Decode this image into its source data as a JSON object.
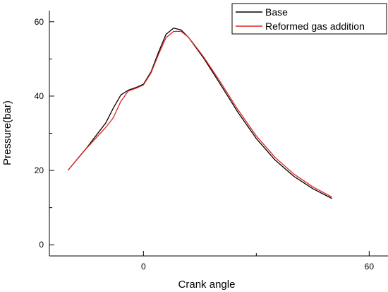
{
  "chart_data": {
    "type": "line",
    "title": "",
    "xlabel": "Crank angle",
    "ylabel": "Pressure(bar)",
    "xlim": [
      -25,
      65
    ],
    "ylim": [
      -3,
      63
    ],
    "x_ticks": [
      0,
      60
    ],
    "x_minor_ticks": [
      30
    ],
    "y_ticks": [
      0,
      20,
      40,
      60
    ],
    "y_minor_ticks": [
      10,
      30,
      50
    ],
    "grid": false,
    "legend_position": "top-right",
    "series": [
      {
        "name": "Base",
        "color": "#000000",
        "x": [
          -20,
          -15,
          -10,
          -8,
          -6,
          -4,
          -2,
          0,
          2,
          4,
          6,
          8,
          10,
          12,
          14,
          16,
          20,
          25,
          30,
          35,
          40,
          45,
          50
        ],
        "y": [
          20.1,
          26.2,
          32.8,
          36.8,
          40.3,
          41.6,
          42.3,
          43.2,
          46.5,
          51.8,
          56.6,
          58.3,
          57.8,
          55.8,
          53.0,
          50.2,
          43.9,
          35.8,
          28.6,
          22.8,
          18.4,
          15.1,
          12.5
        ]
      },
      {
        "name": "Reformed gas addition",
        "color": "#e3211c",
        "x": [
          -20,
          -15,
          -10,
          -8,
          -6,
          -4,
          -2,
          0,
          2,
          4,
          6,
          8,
          10,
          12,
          14,
          16,
          20,
          25,
          30,
          35,
          40,
          45,
          50
        ],
        "y": [
          20.1,
          26.1,
          31.6,
          34.2,
          38.6,
          41.4,
          42.1,
          43.0,
          46.2,
          51.2,
          55.7,
          57.4,
          57.4,
          55.8,
          53.2,
          50.5,
          44.5,
          36.5,
          29.3,
          23.5,
          19.0,
          15.6,
          12.9
        ]
      }
    ]
  }
}
